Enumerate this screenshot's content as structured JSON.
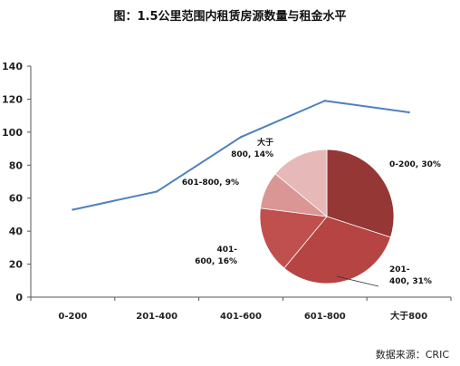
{
  "chart_data": {
    "title": "图：1.5公里范围内租赁房源数量与租金水平",
    "source": "数据来源：CRIC",
    "line": {
      "type": "line",
      "categories": [
        "0-200",
        "201-400",
        "401-600",
        "601-800",
        "大于800"
      ],
      "values": [
        53,
        64,
        97,
        119,
        112
      ],
      "color": "#4f81bd",
      "ylim": [
        0,
        140
      ],
      "yticks": [
        0,
        20,
        40,
        60,
        80,
        100,
        120,
        140
      ]
    },
    "pie": {
      "type": "pie",
      "slices": [
        {
          "category": "0-200",
          "percent": 30,
          "label_lines": [
            "0-200, 30%"
          ],
          "color": "#953735"
        },
        {
          "category": "201-400",
          "percent": 31,
          "label_lines": [
            "201-",
            "400, 31%"
          ],
          "color": "#b54443"
        },
        {
          "category": "401-600",
          "percent": 16,
          "label_lines": [
            "401-",
            "600, 16%"
          ],
          "color": "#c0504d"
        },
        {
          "category": "601-800",
          "percent": 9,
          "label_lines": [
            "601-800, 9%"
          ],
          "color": "#d99694"
        },
        {
          "category": "大于800",
          "percent": 14,
          "label_lines": [
            "大于",
            "800, 14%"
          ],
          "color": "#e6b9b8"
        }
      ]
    }
  }
}
